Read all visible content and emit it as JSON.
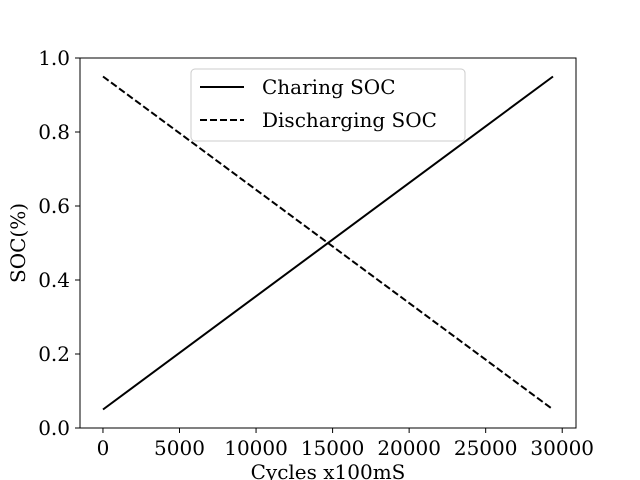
{
  "chart_data": {
    "type": "line",
    "title": "",
    "xlabel": "Cycles x100mS",
    "ylabel": "SOC(%)",
    "xlim": [
      -1500,
      30900
    ],
    "ylim": [
      0.0,
      1.0
    ],
    "xticks": [
      0,
      5000,
      10000,
      15000,
      20000,
      25000,
      30000
    ],
    "xtick_labels": [
      "0",
      "5000",
      "10000",
      "15000",
      "20000",
      "25000",
      "30000"
    ],
    "yticks": [
      0.0,
      0.2,
      0.4,
      0.6,
      0.8,
      1.0
    ],
    "ytick_labels": [
      "0.0",
      "0.2",
      "0.4",
      "0.6",
      "0.8",
      "1.0"
    ],
    "grid": false,
    "legend": {
      "placement": "top-center"
    },
    "series": [
      {
        "name": "Charing SOC",
        "style": "solid",
        "color": "#000000",
        "x": [
          0,
          29400
        ],
        "y": [
          0.05,
          0.95
        ]
      },
      {
        "name": "Discharging SOC",
        "style": "dashed",
        "color": "#000000",
        "x": [
          0,
          29400
        ],
        "y": [
          0.95,
          0.05
        ]
      }
    ]
  }
}
